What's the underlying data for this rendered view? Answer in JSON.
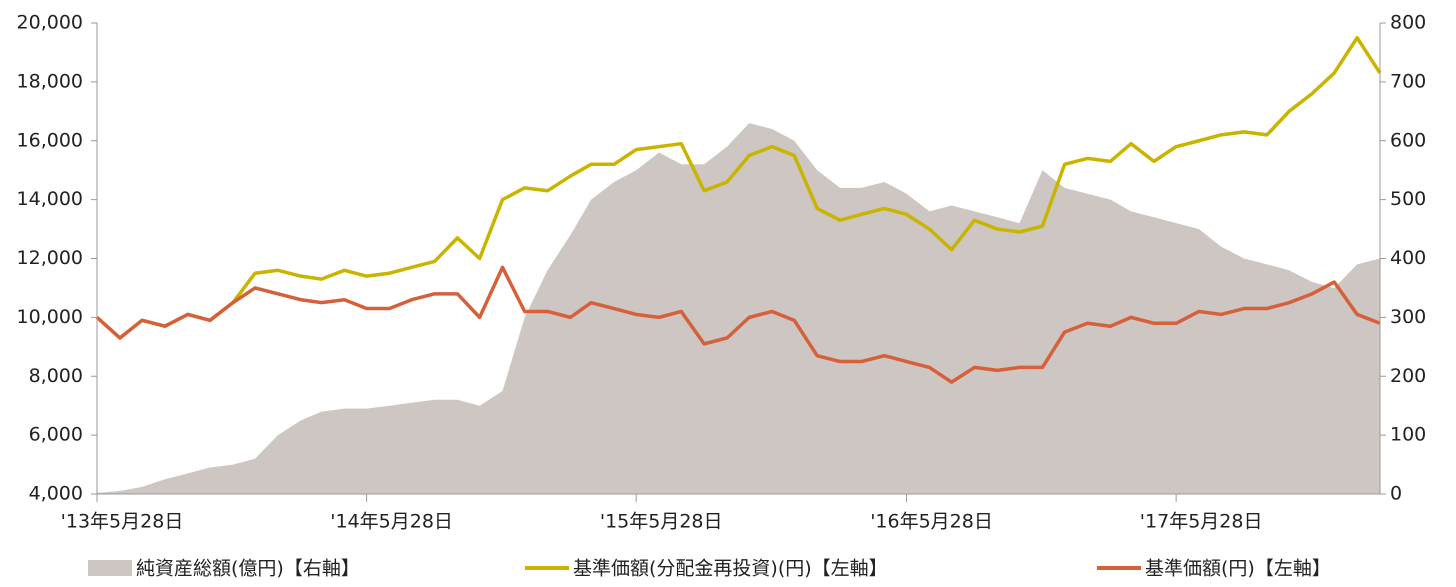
{
  "chart_data": {
    "type": "line",
    "x": [
      "2013-05-28",
      "2013-06-28",
      "2013-07-28",
      "2013-08-28",
      "2013-09-28",
      "2013-10-28",
      "2013-11-28",
      "2013-12-28",
      "2014-01-28",
      "2014-02-28",
      "2014-03-28",
      "2014-04-28",
      "2014-05-28",
      "2014-06-28",
      "2014-07-28",
      "2014-08-28",
      "2014-09-28",
      "2014-10-28",
      "2014-11-28",
      "2014-12-28",
      "2015-01-28",
      "2015-02-28",
      "2015-03-28",
      "2015-04-28",
      "2015-05-28",
      "2015-06-28",
      "2015-07-28",
      "2015-08-28",
      "2015-09-28",
      "2015-10-28",
      "2015-11-28",
      "2015-12-28",
      "2016-01-28",
      "2016-02-28",
      "2016-03-28",
      "2016-04-28",
      "2016-05-28",
      "2016-06-28",
      "2016-07-28",
      "2016-08-28",
      "2016-09-28",
      "2016-10-28",
      "2016-11-28",
      "2016-12-28",
      "2017-01-28",
      "2017-02-28",
      "2017-03-28",
      "2017-04-28",
      "2017-05-28",
      "2017-06-28",
      "2017-07-28",
      "2017-08-28",
      "2017-09-28",
      "2017-10-28",
      "2017-11-28",
      "2017-12-28",
      "2018-01-28",
      "2018-02-28"
    ],
    "xlim": [
      "2013-05-28",
      "2018-02-28"
    ],
    "xticks": [
      {
        "value": "2013-05-28",
        "label": "'13年5月28日"
      },
      {
        "value": "2014-05-28",
        "label": "'14年5月28日"
      },
      {
        "value": "2015-05-28",
        "label": "'15年5月28日"
      },
      {
        "value": "2016-05-28",
        "label": "'16年5月28日"
      },
      {
        "value": "2017-05-28",
        "label": "'17年5月28日"
      }
    ],
    "ylim": [
      4000,
      20000
    ],
    "yticks": [
      {
        "value": 4000,
        "label": "4,000"
      },
      {
        "value": 6000,
        "label": "6,000"
      },
      {
        "value": 8000,
        "label": "8,000"
      },
      {
        "value": 10000,
        "label": "10,000"
      },
      {
        "value": 12000,
        "label": "12,000"
      },
      {
        "value": 14000,
        "label": "14,000"
      },
      {
        "value": 16000,
        "label": "16,000"
      },
      {
        "value": 18000,
        "label": "18,000"
      },
      {
        "value": 20000,
        "label": "20,000"
      }
    ],
    "y2lim": [
      0,
      800
    ],
    "y2ticks": [
      0,
      100,
      200,
      300,
      400,
      500,
      600,
      700,
      800
    ],
    "series": [
      {
        "name": "純資産総額(億円)【右軸】",
        "color": "#cdc6c3",
        "kind": "area",
        "axis": "y2",
        "values": [
          2,
          5,
          12,
          25,
          35,
          45,
          50,
          60,
          100,
          125,
          140,
          145,
          145,
          150,
          155,
          160,
          160,
          150,
          175,
          300,
          380,
          440,
          500,
          530,
          550,
          580,
          560,
          560,
          590,
          630,
          620,
          600,
          550,
          520,
          520,
          530,
          510,
          480,
          490,
          480,
          470,
          460,
          550,
          520,
          510,
          500,
          480,
          470,
          460,
          450,
          420,
          400,
          390,
          380,
          360,
          350,
          390,
          400
        ]
      },
      {
        "name": "基準価額(分配金再投資)(円)【左軸】",
        "color": "#c9b400",
        "values": [
          10000,
          9300,
          9900,
          9700,
          10100,
          9900,
          10500,
          11500,
          11600,
          11400,
          11300,
          11600,
          11400,
          11500,
          11700,
          11900,
          12700,
          12000,
          14000,
          14400,
          14300,
          14800,
          15200,
          15200,
          15700,
          15800,
          15900,
          14300,
          14600,
          15500,
          15800,
          15500,
          13700,
          13300,
          13500,
          13700,
          13500,
          13000,
          12300,
          13300,
          13000,
          12900,
          13100,
          15200,
          15400,
          15300,
          15900,
          15300,
          15800,
          16000,
          16200,
          16300,
          16200,
          17000,
          17600,
          18300,
          19500,
          18300
        ]
      },
      {
        "name": "基準価額(円)【左軸】",
        "color": "#d5603a",
        "values": [
          10000,
          9300,
          9900,
          9700,
          10100,
          9900,
          10500,
          11000,
          10800,
          10600,
          10500,
          10600,
          10300,
          10300,
          10600,
          10800,
          10800,
          10000,
          11700,
          10200,
          10200,
          10000,
          10500,
          10300,
          10100,
          10000,
          10200,
          9100,
          9300,
          10000,
          10200,
          9900,
          8700,
          8500,
          8500,
          8700,
          8500,
          8300,
          7800,
          8300,
          8200,
          8300,
          8300,
          9500,
          9800,
          9700,
          10000,
          9800,
          9800,
          10200,
          10100,
          10300,
          10300,
          10500,
          10800,
          11200,
          10100,
          9800
        ]
      }
    ]
  }
}
